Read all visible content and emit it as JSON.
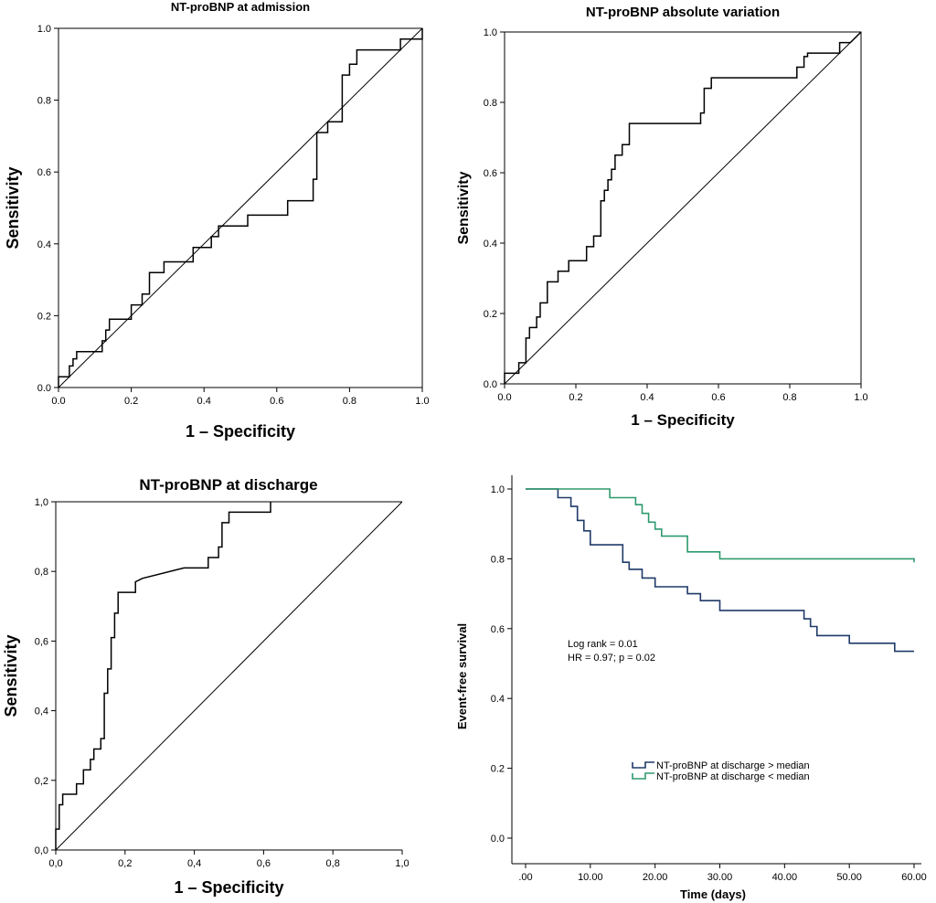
{
  "chart_data": [
    {
      "type": "line",
      "title": "NT-proBNP at admission",
      "xlabel": "1 – Specificity",
      "ylabel": "Sensitivity",
      "xlim": [
        0,
        1
      ],
      "ylim": [
        0,
        1
      ],
      "xticks": [
        "0.0",
        "0.2",
        "0.4",
        "0.6",
        "0.8",
        "1.0"
      ],
      "yticks": [
        "0.0",
        "0.2",
        "0.4",
        "0.6",
        "0.8",
        "1.0"
      ],
      "diagonal": true,
      "grid": false,
      "series": [
        {
          "x": [
            0,
            0,
            0.03,
            0.03,
            0.04,
            0.04,
            0.05,
            0.05,
            0.12,
            0.12,
            0.13,
            0.13,
            0.14,
            0.14,
            0.16,
            0.16,
            0.2,
            0.2,
            0.21,
            0.21,
            0.23,
            0.23,
            0.25,
            0.25,
            0.26,
            0.26,
            0.29,
            0.29,
            0.37,
            0.37,
            0.42,
            0.42,
            0.44,
            0.44,
            0.52,
            0.52,
            0.63,
            0.63,
            0.7,
            0.7,
            0.71,
            0.71,
            0.74,
            0.74,
            0.78,
            0.78,
            0.8,
            0.8,
            0.82,
            0.82,
            0.91,
            0.91,
            0.94,
            0.94,
            1,
            1
          ],
          "y": [
            0,
            0.03,
            0.03,
            0.06,
            0.06,
            0.08,
            0.08,
            0.1,
            0.1,
            0.13,
            0.13,
            0.16,
            0.16,
            0.19,
            0.19,
            0.19,
            0.19,
            0.23,
            0.23,
            0.23,
            0.23,
            0.26,
            0.26,
            0.32,
            0.32,
            0.32,
            0.32,
            0.35,
            0.35,
            0.39,
            0.39,
            0.42,
            0.42,
            0.45,
            0.45,
            0.48,
            0.48,
            0.52,
            0.52,
            0.58,
            0.58,
            0.71,
            0.71,
            0.74,
            0.74,
            0.87,
            0.87,
            0.9,
            0.9,
            0.94,
            0.94,
            0.94,
            0.94,
            0.97,
            0.97,
            1
          ]
        }
      ]
    },
    {
      "type": "line",
      "title": "NT-proBNP absolute variation",
      "xlabel": "1 – Specificity",
      "ylabel": "Sensitivity",
      "xlim": [
        0,
        1
      ],
      "ylim": [
        0,
        1
      ],
      "xticks": [
        "0.0",
        "0.2",
        "0.4",
        "0.6",
        "0.8",
        "1.0"
      ],
      "yticks": [
        "0.0",
        "0.2",
        "0.4",
        "0.6",
        "0.8",
        "1.0"
      ],
      "diagonal": true,
      "grid": false,
      "series": [
        {
          "x": [
            0,
            0,
            0.04,
            0.04,
            0.06,
            0.06,
            0.07,
            0.07,
            0.09,
            0.09,
            0.1,
            0.1,
            0.12,
            0.12,
            0.15,
            0.15,
            0.18,
            0.18,
            0.23,
            0.23,
            0.25,
            0.25,
            0.27,
            0.27,
            0.28,
            0.28,
            0.29,
            0.29,
            0.3,
            0.3,
            0.31,
            0.31,
            0.33,
            0.33,
            0.35,
            0.35,
            0.41,
            0.41,
            0.55,
            0.55,
            0.56,
            0.56,
            0.58,
            0.58,
            0.67,
            0.67,
            0.82,
            0.82,
            0.84,
            0.84,
            0.85,
            0.85,
            0.94,
            0.94,
            0.97,
            0.97,
            1
          ],
          "y": [
            0,
            0.03,
            0.03,
            0.06,
            0.06,
            0.13,
            0.13,
            0.16,
            0.16,
            0.19,
            0.19,
            0.23,
            0.23,
            0.29,
            0.29,
            0.32,
            0.32,
            0.35,
            0.35,
            0.39,
            0.39,
            0.42,
            0.42,
            0.52,
            0.52,
            0.55,
            0.55,
            0.58,
            0.58,
            0.61,
            0.61,
            0.65,
            0.65,
            0.68,
            0.68,
            0.74,
            0.74,
            0.74,
            0.74,
            0.77,
            0.77,
            0.84,
            0.84,
            0.87,
            0.87,
            0.87,
            0.87,
            0.9,
            0.9,
            0.93,
            0.93,
            0.94,
            0.94,
            0.97,
            0.97,
            0.97,
            1
          ]
        }
      ]
    },
    {
      "type": "line",
      "title": "NT-proBNP at discharge",
      "xlabel": "1 – Specificity",
      "ylabel": "Sensitivity",
      "xlim": [
        0,
        1
      ],
      "ylim": [
        0,
        1
      ],
      "xticks": [
        "0,0",
        "0,2",
        "0,4",
        "0,6",
        "0,8",
        "1,0"
      ],
      "yticks": [
        "0,0",
        "0,2",
        "0,4",
        "0,6",
        "0,8",
        "1,0"
      ],
      "diagonal": true,
      "grid": false,
      "series": [
        {
          "x": [
            0,
            0,
            0.01,
            0.01,
            0.02,
            0.02,
            0.06,
            0.06,
            0.08,
            0.08,
            0.1,
            0.1,
            0.11,
            0.11,
            0.13,
            0.13,
            0.14,
            0.14,
            0.15,
            0.15,
            0.16,
            0.16,
            0.17,
            0.17,
            0.18,
            0.18,
            0.2,
            0.2,
            0.23,
            0.23,
            0.25,
            0.37,
            0.44,
            0.44,
            0.47,
            0.47,
            0.48,
            0.48,
            0.5,
            0.5,
            0.53,
            0.53,
            0.62,
            0.62
          ],
          "y": [
            0,
            0.06,
            0.06,
            0.13,
            0.13,
            0.16,
            0.16,
            0.19,
            0.19,
            0.23,
            0.23,
            0.26,
            0.26,
            0.29,
            0.29,
            0.32,
            0.32,
            0.45,
            0.45,
            0.52,
            0.52,
            0.61,
            0.61,
            0.68,
            0.68,
            0.74,
            0.74,
            0.74,
            0.74,
            0.77,
            0.78,
            0.81,
            0.81,
            0.84,
            0.84,
            0.87,
            0.87,
            0.94,
            0.94,
            0.97,
            0.97,
            0.97,
            0.97,
            1
          ]
        }
      ]
    },
    {
      "type": "line",
      "title": "",
      "xlabel": "Time (days)",
      "ylabel": "Event-free survival",
      "xlim": [
        0,
        60
      ],
      "ylim": [
        0,
        1
      ],
      "xticks": [
        ".00",
        "10.00",
        "20.00",
        "30.00",
        "40.00",
        "50.00",
        "60.00"
      ],
      "yticks": [
        "0.0",
        "0.2",
        "0.4",
        "0.6",
        "0.8",
        "1.0"
      ],
      "annotations": [
        "Log rank = 0.01",
        "HR = 0.97; p = 0.02"
      ],
      "legend": "lower-center",
      "series": [
        {
          "name": "NT-proBNP at discharge > median",
          "color": "#1f3a68",
          "x": [
            0,
            5,
            5,
            7,
            7,
            8,
            8,
            9,
            9,
            10,
            10,
            15,
            15,
            16,
            16,
            18,
            18,
            20,
            20,
            25,
            25,
            27,
            27,
            30,
            30,
            43,
            43,
            44,
            44,
            45,
            45,
            46,
            46,
            50,
            50,
            57,
            57,
            60
          ],
          "y": [
            1,
            1,
            0.975,
            0.975,
            0.95,
            0.95,
            0.91,
            0.91,
            0.88,
            0.88,
            0.84,
            0.84,
            0.79,
            0.79,
            0.77,
            0.77,
            0.745,
            0.745,
            0.72,
            0.72,
            0.7,
            0.7,
            0.68,
            0.68,
            0.652,
            0.652,
            0.628,
            0.628,
            0.606,
            0.606,
            0.58,
            0.58,
            0.58,
            0.58,
            0.558,
            0.558,
            0.535,
            0.535
          ]
        },
        {
          "name": "NT-proBNP at discharge < median",
          "color": "#2e9a6e",
          "x": [
            0,
            13,
            13,
            17,
            17,
            18,
            18,
            19,
            19,
            20,
            20,
            21,
            21,
            25,
            25,
            30,
            30,
            60,
            60
          ],
          "y": [
            1,
            1,
            0.975,
            0.975,
            0.955,
            0.955,
            0.93,
            0.93,
            0.905,
            0.905,
            0.885,
            0.885,
            0.865,
            0.865,
            0.82,
            0.82,
            0.8,
            0.8,
            0.79
          ]
        }
      ]
    }
  ]
}
